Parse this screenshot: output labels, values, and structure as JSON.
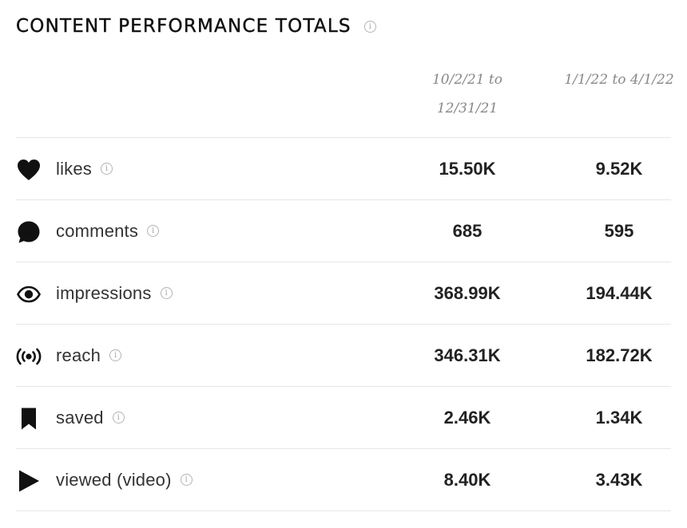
{
  "header": {
    "title": "CONTENT PERFORMANCE TOTALS",
    "info_glyph": "i"
  },
  "columns": [
    {
      "line1": "10/2/21 to",
      "line2": "12/31/21"
    },
    {
      "line1": "1/1/22 to 4/1/22"
    }
  ],
  "metrics": [
    {
      "icon": "heart-icon",
      "label": "likes",
      "period1": "15.50K",
      "period2": "9.52K"
    },
    {
      "icon": "comment-bubble-icon",
      "label": "comments",
      "period1": "685",
      "period2": "595"
    },
    {
      "icon": "eye-icon",
      "label": "impressions",
      "period1": "368.99K",
      "period2": "194.44K"
    },
    {
      "icon": "broadcast-icon",
      "label": "reach",
      "period1": "346.31K",
      "period2": "182.72K"
    },
    {
      "icon": "bookmark-icon",
      "label": "saved",
      "period1": "2.46K",
      "period2": "1.34K"
    },
    {
      "icon": "play-icon",
      "label": "viewed (video)",
      "period1": "8.40K",
      "period2": "3.43K"
    }
  ],
  "colors": {
    "text": "#222222",
    "muted": "#888888",
    "divider": "#e6e6e6",
    "icon": "#111111"
  }
}
